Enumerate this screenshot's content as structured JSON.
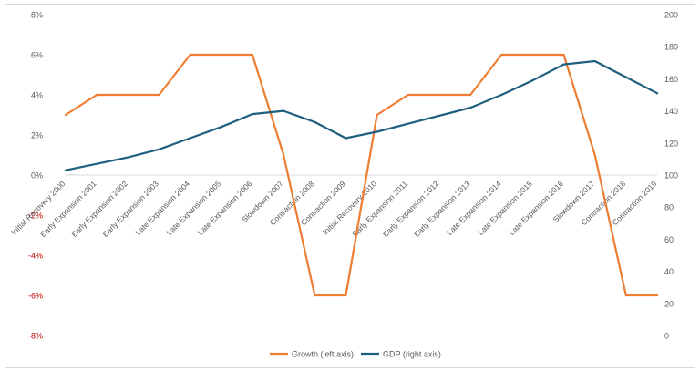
{
  "chart_data": {
    "type": "line",
    "categories": [
      "Initial Recovery 2000",
      "Early Expansion 2001",
      "Early Expansion 2002",
      "Early Expansion 2003",
      "Late Expansion 2004",
      "Late Expansion 2005",
      "Late Expansion 2006",
      "Slowdown 2007",
      "Contraction 2008",
      "Contraction 2009",
      "Initial Recovery 2010",
      "Early Expansion 2011",
      "Early Expansion 2012",
      "Early Expansion 2013",
      "Late Expansion 2014",
      "Late Expansion 2015",
      "Late Expansion 2016",
      "Slowdown 2017",
      "Contraction 2018",
      "Contraction 2019"
    ],
    "series": [
      {
        "name": "Growth (left axis)",
        "axis": "left",
        "color": "#ED7D31",
        "values": [
          3,
          4,
          4,
          4,
          6,
          6,
          6,
          1,
          -6,
          -6,
          3,
          4,
          4,
          4,
          6,
          6,
          6,
          1,
          -6,
          -6
        ]
      },
      {
        "name": "GDP (right axis)",
        "axis": "right",
        "color": "#1F5F7F",
        "values": [
          103,
          107,
          111,
          116,
          123,
          130,
          138,
          140,
          133,
          123,
          127,
          132,
          137,
          142,
          150,
          159,
          169,
          171,
          161,
          151
        ]
      }
    ],
    "left_axis": {
      "ylim": [
        -8,
        8
      ],
      "ticks": [
        "8%",
        "6%",
        "4%",
        "2%",
        "0%",
        "-2%",
        "-4%",
        "-6%",
        "-8%"
      ],
      "tick_values": [
        8,
        6,
        4,
        2,
        0,
        -2,
        -4,
        -6,
        -8
      ],
      "negative_color": "#C00000"
    },
    "right_axis": {
      "ylim": [
        0,
        200
      ],
      "ticks": [
        "200",
        "180",
        "160",
        "140",
        "120",
        "100",
        "80",
        "60",
        "40",
        "20",
        "0"
      ],
      "tick_values": [
        200,
        180,
        160,
        140,
        120,
        100,
        80,
        60,
        40,
        20,
        0
      ]
    },
    "grid": false,
    "legend_position": "bottom"
  }
}
